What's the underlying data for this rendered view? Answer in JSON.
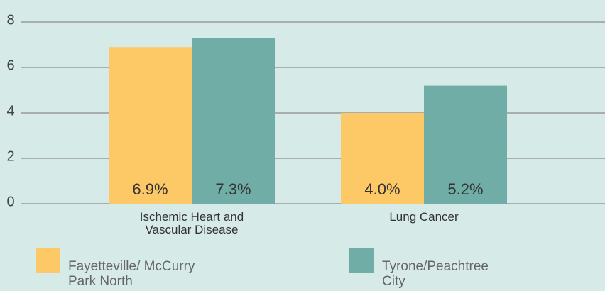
{
  "chart_data": {
    "type": "bar",
    "categories": [
      "Ischemic Heart and Vascular Disease",
      "Lung Cancer"
    ],
    "series": [
      {
        "name": "Fayetteville/ McCurry Park North",
        "color": "#fdc966",
        "values": [
          6.9,
          4.0
        ],
        "value_labels": [
          "6.9%",
          "4.0%"
        ]
      },
      {
        "name": "Tyrone/Peachtree City",
        "color": "#6fada6",
        "values": [
          7.3,
          5.2
        ],
        "value_labels": [
          "7.3%",
          "5.2%"
        ]
      }
    ],
    "ylim": [
      0,
      8
    ],
    "yticks": [
      0,
      2,
      4,
      6,
      8
    ],
    "grid": true
  }
}
